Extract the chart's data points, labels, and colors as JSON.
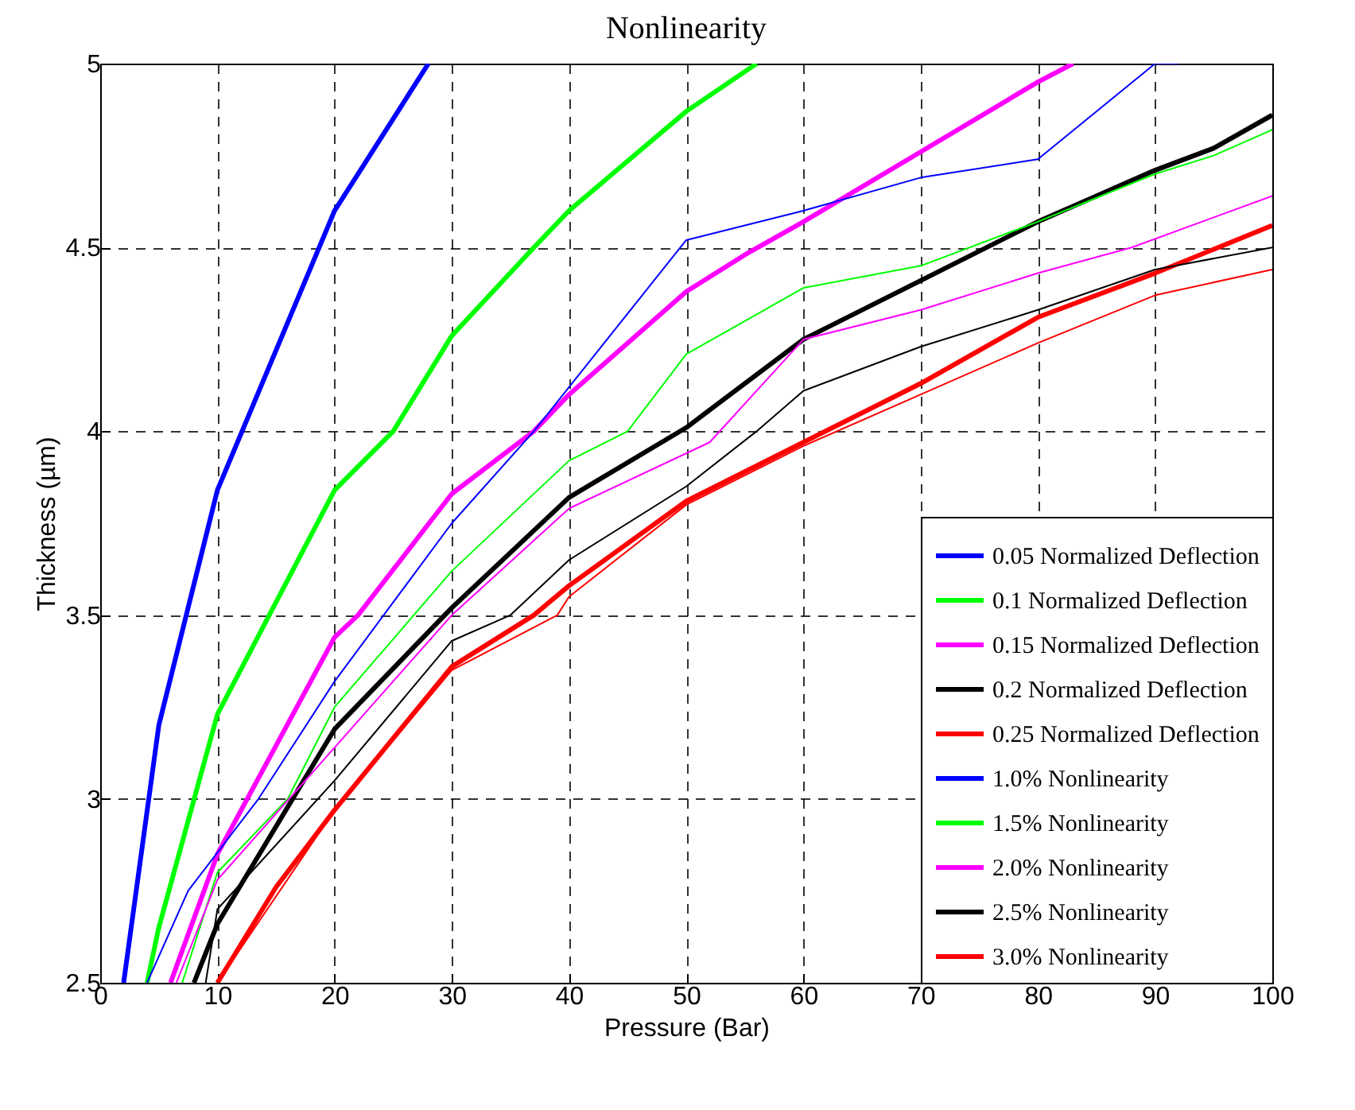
{
  "chart_data": {
    "type": "line",
    "title": "Nonlinearity",
    "xlabel": "Pressure (Bar)",
    "ylabel": "Thickness (µm)",
    "xlim": [
      0,
      100
    ],
    "ylim": [
      2.5,
      5
    ],
    "xticks": [
      0,
      10,
      20,
      30,
      40,
      50,
      60,
      70,
      80,
      90,
      100
    ],
    "yticks": [
      2.5,
      3,
      3.5,
      4,
      4.5,
      5
    ],
    "grid": true,
    "legend": "bottom right",
    "series": [
      {
        "name": "0.05 Normalized Deflection",
        "color": "#0000ff",
        "x": [
          2,
          5,
          10,
          20,
          23,
          28
        ],
        "values": [
          2.5,
          3.2,
          3.84,
          4.6,
          4.75,
          5.0
        ]
      },
      {
        "name": "0.1 Normalized Deflection",
        "color": "#00ff00",
        "x": [
          4,
          5,
          10,
          20,
          25,
          30,
          37,
          40,
          50,
          56
        ],
        "values": [
          2.5,
          2.65,
          3.23,
          3.84,
          4.0,
          4.26,
          4.5,
          4.6,
          4.87,
          5.0
        ]
      },
      {
        "name": "0.15 Normalized Deflection",
        "color": "#ff00ff",
        "x": [
          6,
          10,
          20,
          22,
          30,
          37,
          40,
          50,
          55,
          60,
          70,
          80,
          83
        ],
        "values": [
          2.5,
          2.85,
          3.44,
          3.5,
          3.83,
          4.0,
          4.1,
          4.38,
          4.48,
          4.57,
          4.76,
          4.95,
          5.0
        ]
      },
      {
        "name": "0.2 Normalized Deflection",
        "color": "#000000",
        "x": [
          8,
          10,
          20,
          30,
          40,
          50,
          60,
          70,
          80,
          90,
          95,
          100
        ],
        "values": [
          2.5,
          2.66,
          3.19,
          3.52,
          3.82,
          4.01,
          4.25,
          4.41,
          4.57,
          4.71,
          4.77,
          4.86
        ]
      },
      {
        "name": "0.25 Normalized Deflection",
        "color": "#ff0000",
        "x": [
          10,
          15,
          20,
          30,
          37,
          40,
          50,
          60,
          70,
          80,
          90,
          100
        ],
        "values": [
          2.5,
          2.76,
          2.97,
          3.36,
          3.5,
          3.58,
          3.81,
          3.97,
          4.13,
          4.31,
          4.43,
          4.56
        ]
      },
      {
        "name": "1.0% Nonlinearity",
        "color": "#0000ff",
        "x": [
          4,
          7.5,
          13.5,
          20,
          30,
          37,
          40,
          50,
          60,
          70,
          80,
          90,
          92
        ],
        "values": [
          2.5,
          2.75,
          3.0,
          3.32,
          3.75,
          4.0,
          4.12,
          4.52,
          4.6,
          4.69,
          4.74,
          5.0,
          5.0
        ]
      },
      {
        "name": "1.5% Nonlinearity",
        "color": "#00ff00",
        "x": [
          7,
          10,
          16,
          20,
          30,
          40,
          45,
          50,
          60,
          70,
          80,
          90,
          95,
          100
        ],
        "values": [
          2.5,
          2.8,
          3.0,
          3.25,
          3.62,
          3.92,
          4.0,
          4.21,
          4.39,
          4.45,
          4.57,
          4.7,
          4.75,
          4.82
        ]
      },
      {
        "name": "2.0% Nonlinearity",
        "color": "#ff00ff",
        "x": [
          6.5,
          10,
          20,
          30,
          40,
          52,
          60,
          70,
          80,
          88,
          100
        ],
        "values": [
          2.5,
          2.78,
          3.14,
          3.5,
          3.79,
          3.97,
          4.25,
          4.33,
          4.43,
          4.5,
          4.64
        ]
      },
      {
        "name": "2.5% Nonlinearity",
        "color": "#000000",
        "x": [
          9,
          10,
          20,
          30,
          35,
          40,
          50,
          56,
          60,
          70,
          80,
          90,
          100
        ],
        "values": [
          2.5,
          2.7,
          3.05,
          3.43,
          3.5,
          3.65,
          3.85,
          4.0,
          4.11,
          4.23,
          4.33,
          4.44,
          4.5
        ]
      },
      {
        "name": "3.0% Nonlinearity",
        "color": "#ff0000",
        "x": [
          10,
          20,
          30,
          39,
          40,
          50,
          60,
          70,
          80,
          90,
          100
        ],
        "values": [
          2.5,
          2.97,
          3.35,
          3.5,
          3.55,
          3.8,
          3.96,
          4.1,
          4.24,
          4.37,
          4.44
        ]
      }
    ]
  }
}
